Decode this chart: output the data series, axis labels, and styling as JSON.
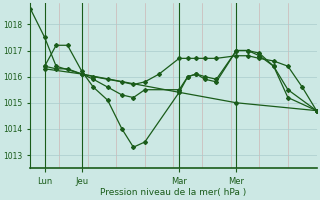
{
  "bg_color": "#cce8e4",
  "grid_color_major": "#aacccc",
  "grid_color_minor": "#ddbbbb",
  "line_color": "#1a5c1a",
  "axis_color": "#1a5c1a",
  "xlim": [
    0,
    100
  ],
  "ylim": [
    1012.5,
    1018.8
  ],
  "yticks": [
    1013,
    1014,
    1015,
    1016,
    1017,
    1018
  ],
  "xlabel": "Pression niveau de la mer( hPa )",
  "xtick_labels": [
    "Lun",
    "Jeu",
    "Mar",
    "Mer"
  ],
  "xtick_positions": [
    5,
    18,
    52,
    72
  ],
  "vline_positions": [
    5,
    18,
    52,
    72
  ],
  "minor_vlines": [
    0,
    10,
    20,
    30,
    40,
    50,
    60,
    70,
    80,
    90,
    100
  ],
  "series": [
    {
      "name": "line1_long_decline",
      "x": [
        0,
        5,
        9,
        18,
        52,
        72,
        100
      ],
      "y": [
        1018.6,
        1017.5,
        1016.4,
        1016.1,
        1015.4,
        1015.0,
        1014.7
      ]
    },
    {
      "name": "line2_deep_dip",
      "x": [
        5,
        9,
        13,
        18,
        22,
        27,
        32,
        36,
        40,
        52,
        55,
        58,
        61,
        65,
        72,
        76,
        80,
        85,
        90,
        100
      ],
      "y": [
        1016.4,
        1017.2,
        1017.2,
        1016.2,
        1015.6,
        1015.1,
        1014.0,
        1013.3,
        1013.5,
        1015.4,
        1016.0,
        1016.1,
        1016.0,
        1015.9,
        1017.0,
        1017.0,
        1016.9,
        1016.4,
        1015.2,
        1014.7
      ]
    },
    {
      "name": "line3_mid",
      "x": [
        5,
        9,
        13,
        18,
        22,
        27,
        32,
        36,
        40,
        52,
        55,
        58,
        61,
        65,
        72,
        76,
        80,
        85,
        90,
        100
      ],
      "y": [
        1016.4,
        1016.3,
        1016.3,
        1016.1,
        1015.9,
        1015.6,
        1015.3,
        1015.2,
        1015.5,
        1015.5,
        1016.0,
        1016.1,
        1015.9,
        1015.8,
        1017.0,
        1017.0,
        1016.8,
        1016.4,
        1015.5,
        1014.7
      ]
    },
    {
      "name": "line4_gradual_rise",
      "x": [
        5,
        18,
        22,
        27,
        32,
        36,
        40,
        45,
        52,
        55,
        58,
        61,
        65,
        72,
        76,
        80,
        85,
        90,
        95,
        100
      ],
      "y": [
        1016.3,
        1016.1,
        1016.0,
        1015.9,
        1015.8,
        1015.7,
        1015.8,
        1016.1,
        1016.7,
        1016.7,
        1016.7,
        1016.7,
        1016.7,
        1016.8,
        1016.8,
        1016.7,
        1016.6,
        1016.4,
        1015.6,
        1014.7
      ]
    }
  ]
}
